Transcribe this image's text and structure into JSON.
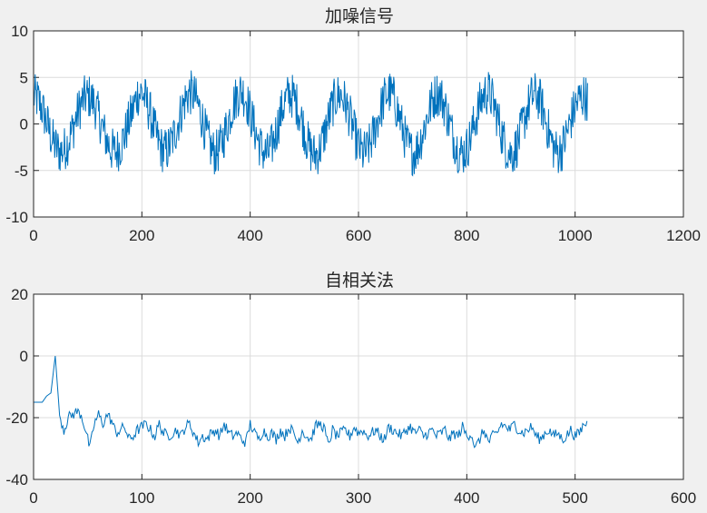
{
  "chart_data": [
    {
      "type": "line",
      "title": "加噪信号",
      "xlabel": "",
      "ylabel": "",
      "xlim": [
        0,
        1200
      ],
      "ylim": [
        -10,
        10
      ],
      "xticks": [
        0,
        200,
        400,
        600,
        800,
        1000,
        1200
      ],
      "yticks": [
        -10,
        -5,
        0,
        5,
        10
      ],
      "grid": true,
      "color": "#0072BD",
      "n_samples": 1024,
      "noise_amplitude": 2.5,
      "x_step": 8,
      "values_coarse": [
        3.0,
        2.6,
        1.6,
        0.2,
        -1.3,
        -2.4,
        -3.0,
        -2.8,
        -1.9,
        -0.6,
        0.9,
        2.2,
        2.9,
        2.9,
        2.2,
        0.9,
        -0.6,
        -1.9,
        -2.8,
        -3.0,
        -2.4,
        -1.3,
        0.2,
        1.6,
        3.2,
        3.4,
        2.4,
        1.0,
        -0.8,
        -2.2,
        -3.0,
        -2.7,
        -1.8,
        -0.4,
        1.2,
        2.6,
        3.4,
        3.1,
        2.0,
        0.4,
        -1.4,
        -2.7,
        -3.2,
        -2.6,
        -1.2,
        0.4,
        2.0,
        3.1,
        3.6,
        2.8,
        1.2,
        -0.5,
        -2.0,
        -3.0,
        -3.3,
        -2.4,
        -0.8,
        1.0,
        2.4,
        3.2,
        2.9,
        1.8,
        0.2,
        -1.6,
        -2.9,
        -3.4,
        -2.8,
        -1.3,
        0.4,
        2.0,
        3.0,
        3.1,
        2.2,
        0.8,
        -0.9,
        -2.4,
        -3.2,
        -2.9,
        -1.8,
        -0.2,
        1.4,
        2.8,
        3.4,
        2.9,
        1.5,
        -0.2,
        -1.9,
        -3.0,
        -3.1,
        -2.2,
        -0.7,
        1.0,
        2.5,
        3.3,
        3.0,
        1.8,
        0.1,
        -1.6,
        -2.8,
        -3.2,
        -2.6,
        -1.2,
        0.5,
        2.1,
        3.2,
        3.4,
        2.5,
        0.9,
        -0.9,
        -2.4,
        -3.2,
        -2.9,
        -1.7,
        0.0,
        1.7,
        2.9,
        3.2,
        2.4,
        0.8,
        -1.0,
        -2.5,
        -3.1,
        -2.6,
        -1.2,
        0.4,
        1.8,
        2.7,
        3.0,
        2.6
      ]
    },
    {
      "type": "line",
      "title": "自相关法",
      "xlabel": "",
      "ylabel": "",
      "xlim": [
        0,
        600
      ],
      "ylim": [
        -40,
        20
      ],
      "xticks": [
        0,
        100,
        200,
        300,
        400,
        500,
        600
      ],
      "yticks": [
        -40,
        -20,
        0,
        20
      ],
      "grid": true,
      "color": "#0072BD",
      "n_samples": 512,
      "noise_amplitude": 1.8,
      "x_step": 4,
      "values_coarse": [
        -15,
        -15,
        -15,
        -13,
        -12,
        0,
        -19,
        -24,
        -20,
        -19,
        -18,
        -19,
        -24,
        -30,
        -22,
        -19,
        -22,
        -19,
        -21,
        -25,
        -24,
        -23,
        -27,
        -26,
        -24,
        -23,
        -22,
        -24,
        -26,
        -22,
        -25,
        -26,
        -25,
        -24,
        -26,
        -23,
        -22,
        -25,
        -28,
        -26,
        -27,
        -25,
        -24,
        -26,
        -22,
        -25,
        -26,
        -25,
        -27,
        -28,
        -22,
        -25,
        -27,
        -24,
        -26,
        -25,
        -27,
        -24,
        -26,
        -23,
        -25,
        -28,
        -24,
        -26,
        -27,
        -23,
        -22,
        -23,
        -29,
        -24,
        -26,
        -25,
        -24,
        -26,
        -23,
        -25,
        -24,
        -26,
        -25,
        -24,
        -26,
        -27,
        -23,
        -24,
        -25,
        -26,
        -24,
        -23,
        -25,
        -24,
        -26,
        -25,
        -24,
        -26,
        -25,
        -24,
        -27,
        -25,
        -26,
        -23,
        -26,
        -25,
        -30,
        -27,
        -24,
        -28,
        -26,
        -25,
        -22,
        -23,
        -24,
        -22,
        -24,
        -25,
        -24,
        -23,
        -26,
        -27,
        -25,
        -24,
        -26,
        -25,
        -27,
        -26,
        -24,
        -26,
        -25,
        -22
      ]
    }
  ]
}
